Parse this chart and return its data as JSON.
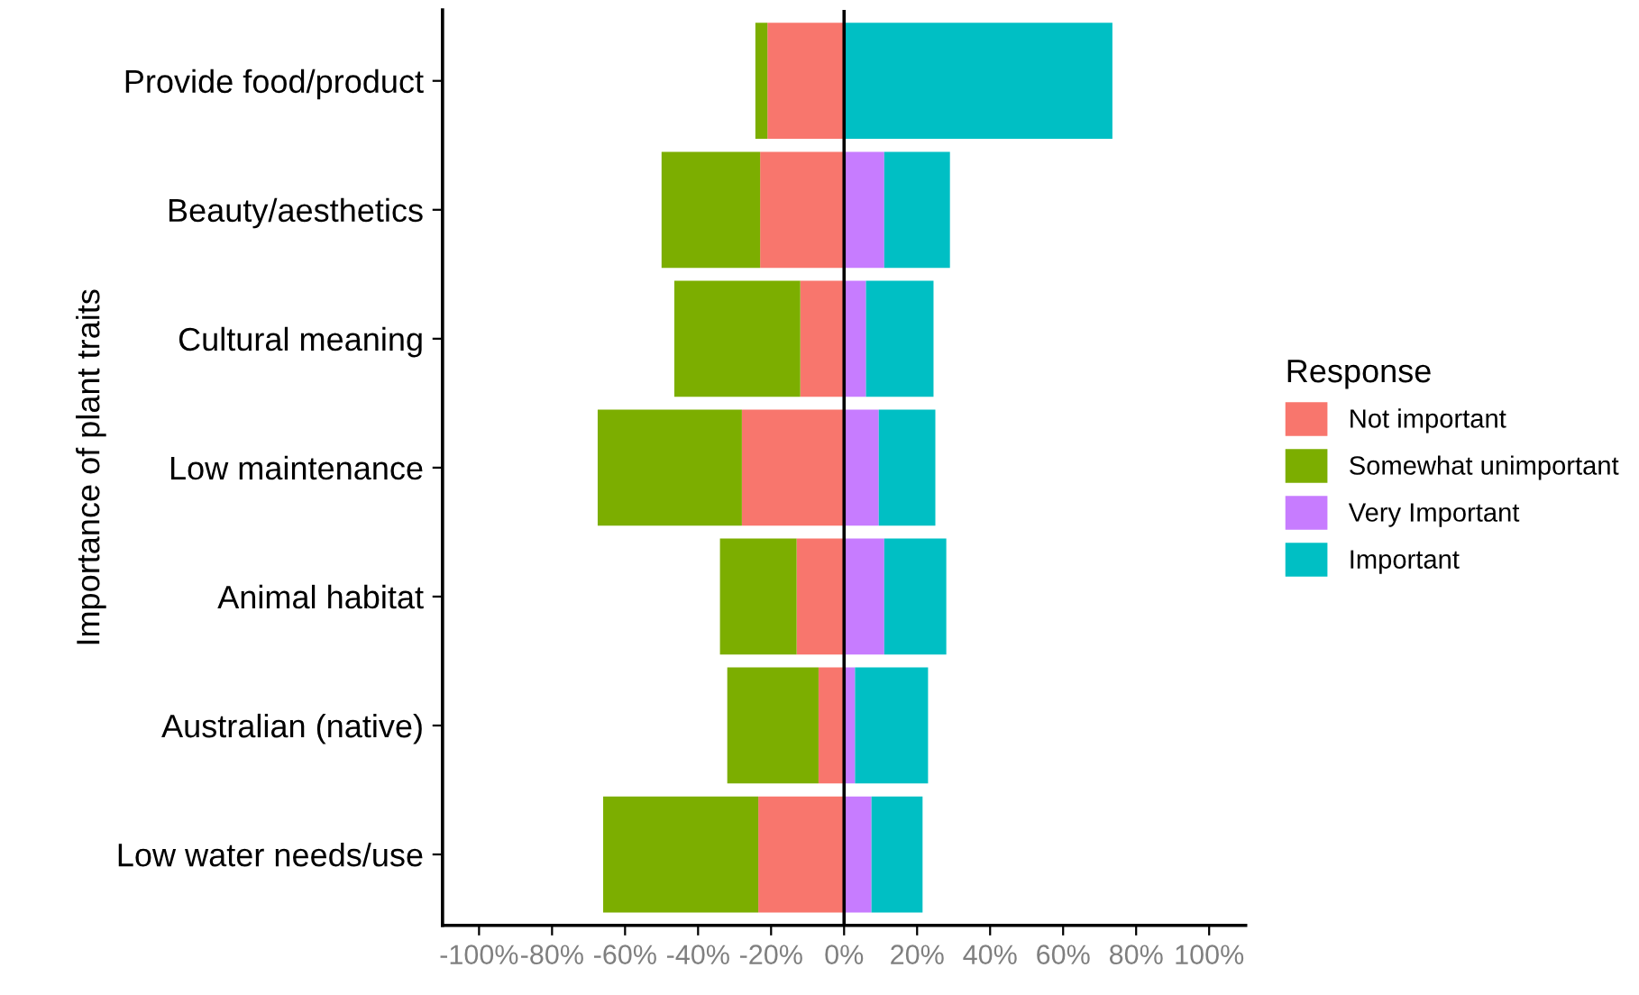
{
  "chart_data": {
    "type": "bar",
    "orientation": "horizontal",
    "stacked": true,
    "ylabel": "Importance of plant traits",
    "legend_title": "Response",
    "legend": "right",
    "categories": [
      "Provide food/product",
      "Beauty/aesthetics",
      "Cultural meaning",
      "Low maintenance",
      "Animal habitat",
      "Australian (native)",
      "Low water needs/use"
    ],
    "series": [
      {
        "name": "Not important",
        "color": "#f8766d",
        "values": [
          -21,
          -23,
          -12,
          -28,
          -13,
          -7,
          -23.5
        ]
      },
      {
        "name": "Somewhat unimportant",
        "color": "#7cae00",
        "values": [
          -3.3,
          -27,
          -34.5,
          -39.5,
          -21,
          -25,
          -42.5
        ]
      },
      {
        "name": "Very Important",
        "color": "#c77cff",
        "values": [
          0,
          11,
          6,
          9.5,
          11,
          3,
          7.5
        ]
      },
      {
        "name": "Important",
        "color": "#00bfc4",
        "values": [
          73.5,
          18,
          18.5,
          15.5,
          17,
          20,
          14
        ]
      }
    ],
    "xlim": [
      -110,
      110
    ],
    "xticks": [
      {
        "value": -100,
        "label": "-100%"
      },
      {
        "value": -80,
        "label": "-80%"
      },
      {
        "value": -60,
        "label": "-60%"
      },
      {
        "value": -40,
        "label": "-40%"
      },
      {
        "value": -20,
        "label": "-20%"
      },
      {
        "value": 0,
        "label": "0%"
      },
      {
        "value": 20,
        "label": "20%"
      },
      {
        "value": 40,
        "label": "40%"
      },
      {
        "value": 60,
        "label": "60%"
      },
      {
        "value": 80,
        "label": "80%"
      },
      {
        "value": 100,
        "label": "100%"
      }
    ],
    "ref_lines": [
      {
        "axis": "x",
        "value": 0,
        "color": "#000000"
      }
    ]
  }
}
